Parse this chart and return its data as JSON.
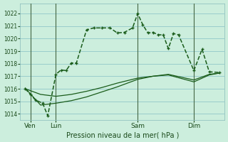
{
  "bg_color": "#cceedd",
  "grid_color": "#99cccc",
  "line_color": "#1a5c1a",
  "title": "Pression niveau de la mer( hPa )",
  "ylim": [
    1013.5,
    1022.8
  ],
  "yticks": [
    1014,
    1015,
    1016,
    1017,
    1018,
    1019,
    1020,
    1021,
    1022
  ],
  "xlim": [
    0,
    20
  ],
  "day_ticks": [
    {
      "label": "Ven",
      "x": 1.0
    },
    {
      "label": "Lun",
      "x": 3.5
    },
    {
      "label": "Sam",
      "x": 11.5
    },
    {
      "label": "Dim",
      "x": 17.0
    }
  ],
  "day_vlines": [
    1.0,
    3.5,
    11.5,
    17.0
  ],
  "line1_x": [
    0.5,
    1.0,
    1.5,
    2.0,
    3.5,
    5.0,
    6.5,
    8.0,
    9.5,
    11.5,
    13.0,
    14.5,
    17.0,
    18.5,
    19.5
  ],
  "line1_y": [
    1016.0,
    1015.85,
    1015.7,
    1015.55,
    1015.4,
    1015.55,
    1015.8,
    1016.1,
    1016.45,
    1016.85,
    1017.0,
    1017.1,
    1016.55,
    1017.1,
    1017.25
  ],
  "line2_x": [
    0.5,
    1.0,
    1.5,
    2.0,
    3.5,
    5.0,
    6.5,
    8.0,
    9.5,
    11.5,
    13.0,
    14.5,
    17.0,
    18.5,
    19.5
  ],
  "line2_y": [
    1016.05,
    1015.6,
    1015.15,
    1014.7,
    1014.85,
    1015.05,
    1015.35,
    1015.75,
    1016.15,
    1016.75,
    1017.0,
    1017.15,
    1016.7,
    1017.15,
    1017.25
  ],
  "main_x": [
    0.5,
    1.0,
    1.5,
    2.2,
    2.7,
    3.5,
    4.0,
    4.5,
    5.0,
    5.5,
    6.5,
    7.2,
    8.0,
    8.8,
    9.5,
    10.2,
    11.0,
    11.5,
    12.0,
    12.5,
    13.0,
    13.5,
    14.0,
    14.5,
    15.0,
    15.5,
    17.0,
    17.8,
    18.5,
    19.5
  ],
  "main_y": [
    1016.0,
    1015.55,
    1015.1,
    1014.85,
    1013.85,
    1017.15,
    1017.5,
    1017.45,
    1018.05,
    1018.05,
    1020.7,
    1020.85,
    1020.85,
    1020.85,
    1020.45,
    1020.5,
    1020.85,
    1022.0,
    1021.1,
    1020.45,
    1020.5,
    1020.3,
    1020.3,
    1019.2,
    1020.4,
    1020.3,
    1017.45,
    1019.15,
    1017.35,
    1017.3
  ]
}
